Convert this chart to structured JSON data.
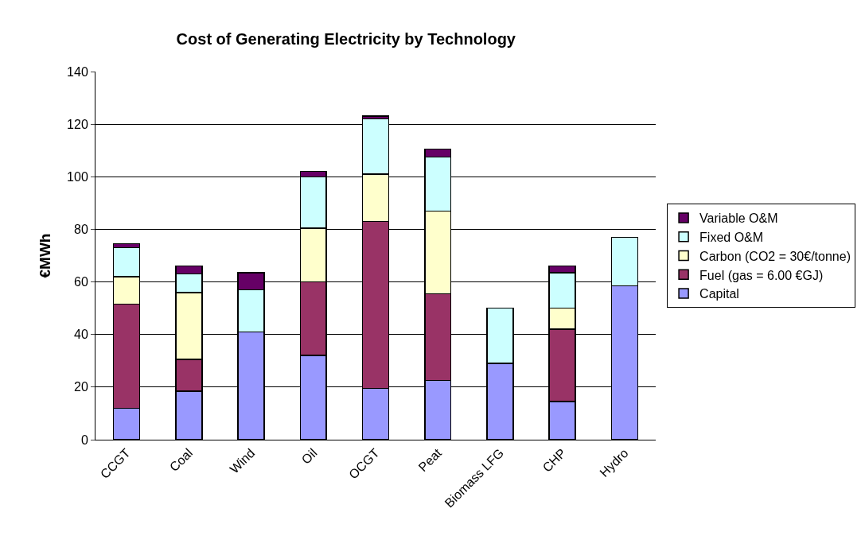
{
  "chart_data": {
    "type": "bar",
    "title": "Cost of Generating Electricity by Technology",
    "ylabel": "€MWh",
    "categories": [
      "CCGT",
      "Coal",
      "Wind",
      "Oil",
      "OCGT",
      "Peat",
      "Biomass LFG",
      "CHP",
      "Hydro"
    ],
    "stacked": true,
    "series": [
      {
        "name": "Capital",
        "color": "#9999ff",
        "values": [
          12,
          18.5,
          41,
          32,
          19.5,
          22.5,
          29,
          14.5,
          58.5
        ]
      },
      {
        "name": "Fuel (gas = 6.00 €GJ)",
        "color": "#993366",
        "values": [
          39.5,
          12,
          null,
          28,
          63.5,
          33,
          null,
          27.5,
          null
        ]
      },
      {
        "name": "Carbon (CO2 = 30€/tonne)",
        "color": "#ffffcc",
        "values": [
          10.5,
          25.5,
          null,
          20.5,
          18,
          31.5,
          null,
          8,
          null
        ]
      },
      {
        "name": "Fixed O&M",
        "color": "#ccffff",
        "values": [
          11,
          7,
          16,
          19.5,
          21,
          20.5,
          21,
          13.5,
          18.5
        ]
      },
      {
        "name": "Variable O&M",
        "color": "#660066",
        "values": [
          1.5,
          3,
          6.5,
          2,
          1,
          3,
          null,
          2.5,
          null
        ]
      }
    ],
    "ylim": [
      0,
      140
    ],
    "yticks": [
      0,
      20,
      40,
      60,
      80,
      100,
      120,
      140
    ],
    "grid": "y",
    "legend": "right"
  }
}
